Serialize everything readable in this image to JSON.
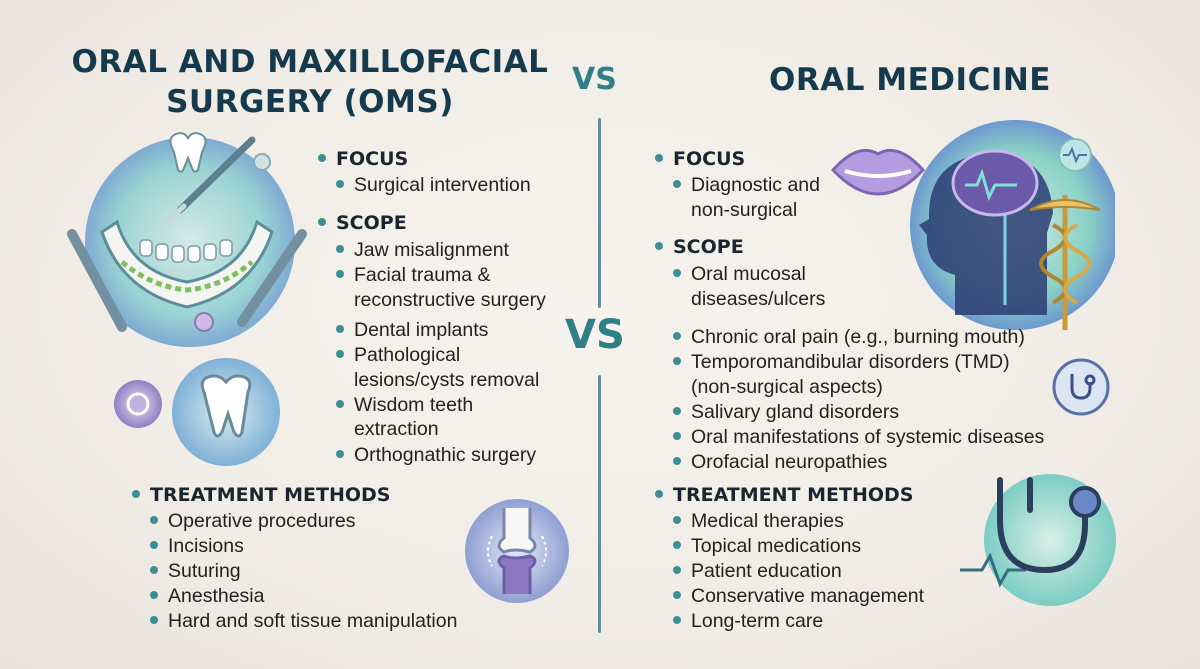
{
  "left": {
    "title_line1": "ORAL AND MAXILLOFACIAL",
    "title_line2": "SURGERY (OMS)",
    "focus_heading": "FOCUS",
    "focus_items": [
      "Surgical intervention"
    ],
    "scope_heading": "SCOPE",
    "scope_items": [
      "Jaw misalignment",
      "Facial trauma &",
      "reconstructive surgery",
      "Dental implants",
      "Pathological",
      "lesions/cysts removal",
      "Wisdom teeth",
      "extraction",
      "Orthognathic surgery"
    ],
    "treatment_heading": "TREATMENT METHODS",
    "treatment_items": [
      "Operative procedures",
      "Incisions",
      "Suturing",
      "Anesthesia",
      "Hard and soft tissue manipulation"
    ]
  },
  "right": {
    "title": "ORAL MEDICINE",
    "focus_heading": "FOCUS",
    "focus_items": [
      "Diagnostic and",
      "non-surgical"
    ],
    "scope_heading": "SCOPE",
    "scope_items": [
      "Oral mucosal",
      "diseases/ulcers",
      "Chronic oral pain (e.g., burning mouth)",
      "Temporomandibular disorders (TMD)",
      "(non-surgical aspects)",
      "Salivary gland disorders",
      "Oral manifestations of systemic diseases",
      "Orofacial neuropathies"
    ],
    "treatment_heading": "TREATMENT METHODS",
    "treatment_items": [
      "Medical therapies",
      "Topical medications",
      "Patient education",
      "Conservative management",
      "Long-term care"
    ]
  },
  "vs_top": "VS",
  "vs_middle": "VS",
  "colors": {
    "title": "#163a4d",
    "accent": "#3b8e95",
    "vs": "#2f7f86"
  },
  "icons": [
    "jaw-surgery-icon",
    "tooth-icon",
    "scalpel-icon",
    "joint-bone-icon",
    "lips-icon",
    "brain-head-icon",
    "caduceus-icon",
    "stethoscope-icon"
  ]
}
